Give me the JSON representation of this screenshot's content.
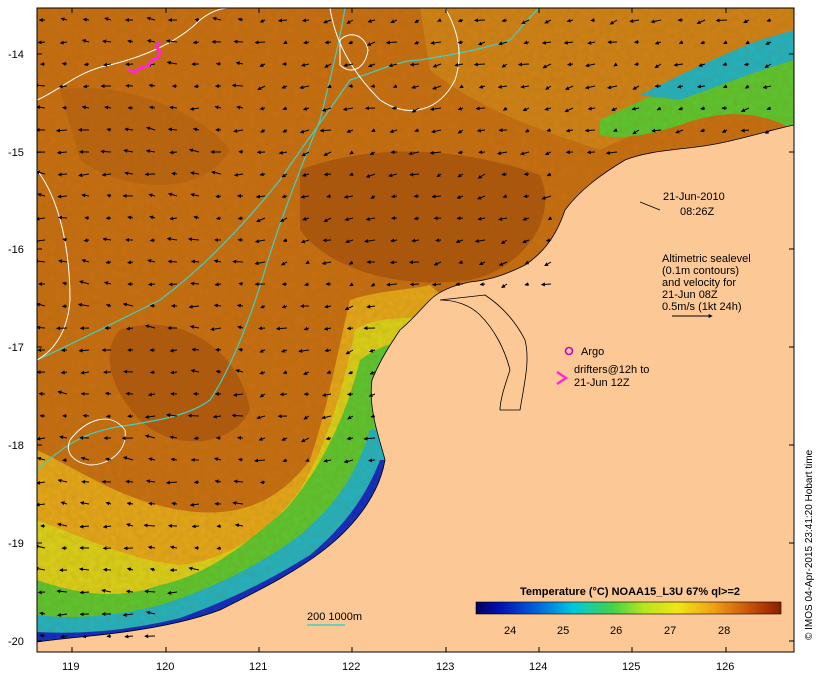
{
  "map": {
    "date_label": "21-Jun-2010",
    "time_label": "08:26Z",
    "altimetry_note": [
      "Altimetric sealevel",
      "(0.1m contours)",
      "and velocity for",
      "21-Jun 08Z",
      "0.5m/s (1kt 24h)"
    ],
    "argo_label": "Argo",
    "drifters_label_1": "drifters@12h to",
    "drifters_label_2": "21-Jun 12Z",
    "depth_legend": "200  1000m",
    "colorbar_title": "Temperature (°C) NOAA15_L3U 67% ql>=2",
    "colorbar_ticks": [
      "24",
      "25",
      "26",
      "27",
      "28"
    ],
    "copyright": "© IMOS 04-Apr-2015 23:41:20 Hobart time",
    "lat_ticks": [
      "-14",
      "-15",
      "-16",
      "-17",
      "-18",
      "-19",
      "-20"
    ],
    "lon_ticks": [
      "119",
      "120",
      "121",
      "122",
      "123",
      "124",
      "125",
      "126"
    ],
    "colors": {
      "land": "#fbc896",
      "sst_warm": "#c86e14",
      "sst_hot": "#a04a0c",
      "sst_mid": "#e6a81c",
      "sst_yellow": "#dcd21c",
      "sst_green": "#5ac832",
      "sst_cyan": "#1eb4c8",
      "sst_blue": "#0a28c8",
      "sst_navy": "#000078",
      "isobath": "#40d0c0",
      "contour": "#ffffff",
      "drifter": "#ff28d2",
      "argo": "#c800c8"
    }
  }
}
